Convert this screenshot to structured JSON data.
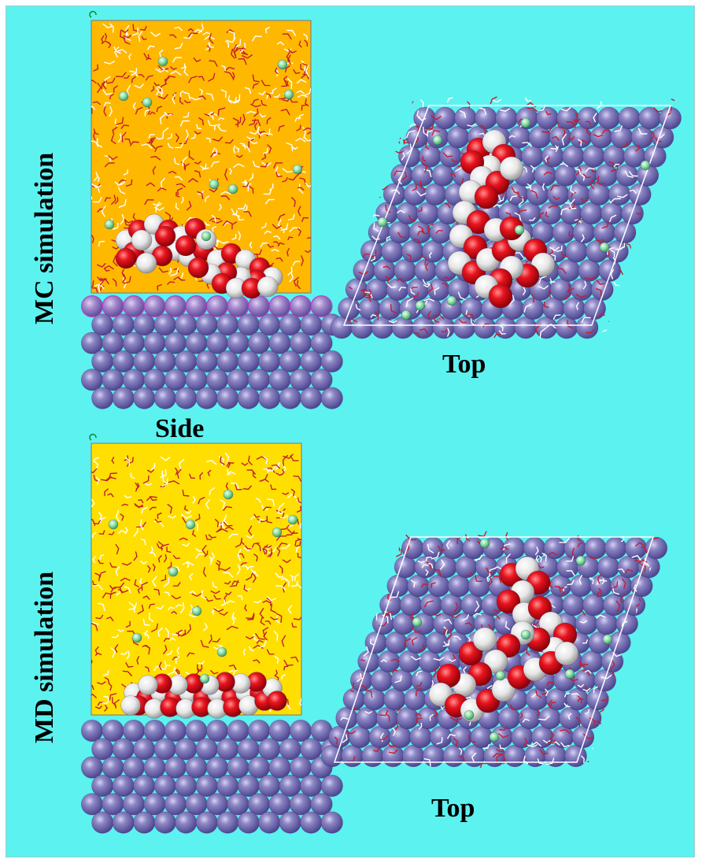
{
  "labels": {
    "mc": "MC simulation",
    "md": "MD simulation",
    "side": "Side",
    "top_upper": "Top",
    "top_lower": "Top"
  },
  "colors": {
    "background": "#5cf2f0",
    "mc_solvent_box": "#ffb800",
    "md_solvent_box": "#ffdf00",
    "metal_atom": "#7f78b8",
    "metal_surface_atom": "#a989c8",
    "oxygen": "#e8141e",
    "hydrogen": "#f2f2f2",
    "ion": "#8fe0a8",
    "water_stick": "#c41e2c"
  },
  "panels": [
    {
      "name": "mc-side-view",
      "view": "side",
      "method": "MC"
    },
    {
      "name": "mc-top-view",
      "view": "top",
      "method": "MC"
    },
    {
      "name": "md-side-view",
      "view": "side",
      "method": "MD"
    },
    {
      "name": "md-top-view",
      "view": "top",
      "method": "MD"
    }
  ]
}
